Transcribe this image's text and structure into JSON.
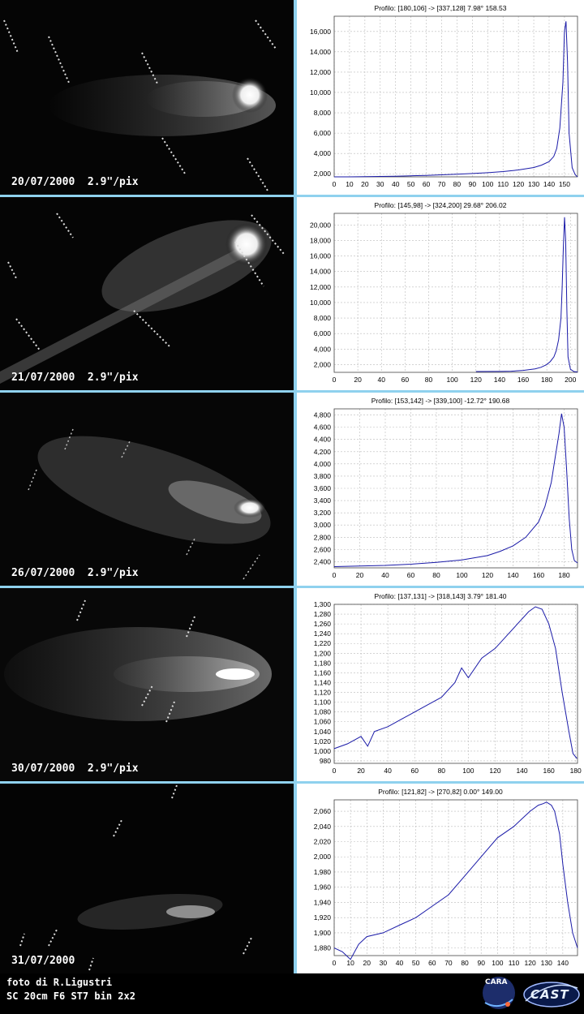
{
  "chart_data": [
    {
      "type": "line",
      "title": "Profilo: [180,106] -> [337,128] 7.98° 158.53",
      "x": [
        0,
        10,
        20,
        30,
        40,
        50,
        60,
        70,
        80,
        90,
        100,
        110,
        120,
        130,
        135,
        140,
        143,
        145,
        147,
        149,
        150,
        151,
        152,
        153,
        155,
        157,
        158.5
      ],
      "y": [
        1700,
        1700,
        1720,
        1740,
        1760,
        1800,
        1840,
        1900,
        1960,
        2030,
        2110,
        2220,
        2380,
        2620,
        2850,
        3200,
        3700,
        4500,
        6500,
        11000,
        16000,
        17000,
        13000,
        6000,
        2600,
        1900,
        1700
      ],
      "xlim": [
        0,
        158.5
      ],
      "ylim": [
        1700,
        17500
      ],
      "xticks": [
        0,
        10,
        20,
        30,
        40,
        50,
        60,
        70,
        80,
        90,
        100,
        110,
        120,
        130,
        140,
        150
      ],
      "yticks": [
        2000,
        4000,
        6000,
        8000,
        10000,
        12000,
        14000,
        16000
      ],
      "grid": true
    },
    {
      "type": "line",
      "title": "Profilo: [145,98] -> [324,200] 29.68° 206.02",
      "x": [
        120,
        140,
        150,
        160,
        170,
        175,
        180,
        183,
        186,
        188,
        190,
        192,
        193,
        194,
        195,
        196,
        197,
        198,
        200,
        203,
        206
      ],
      "y": [
        1100,
        1110,
        1150,
        1250,
        1450,
        1650,
        2000,
        2400,
        3000,
        3800,
        5200,
        8000,
        12000,
        17000,
        21000,
        18000,
        9000,
        3000,
        1400,
        1100,
        1050
      ],
      "xlim": [
        0,
        206
      ],
      "ylim": [
        1000,
        21500
      ],
      "xticks": [
        0,
        20,
        40,
        60,
        80,
        100,
        120,
        140,
        160,
        180,
        200
      ],
      "yticks": [
        2000,
        4000,
        6000,
        8000,
        10000,
        12000,
        14000,
        16000,
        18000,
        20000
      ],
      "grid": true
    },
    {
      "type": "line",
      "title": "Profilo: [153,142] -> [339,100] -12.72° 190.68",
      "x": [
        0,
        20,
        40,
        60,
        80,
        100,
        120,
        130,
        140,
        150,
        160,
        165,
        170,
        173,
        176,
        178,
        180,
        182,
        184,
        186,
        188,
        190.5
      ],
      "y": [
        2320,
        2330,
        2340,
        2360,
        2390,
        2430,
        2500,
        2570,
        2660,
        2800,
        3050,
        3300,
        3700,
        4100,
        4500,
        4820,
        4600,
        3900,
        3100,
        2600,
        2420,
        2380
      ],
      "xlim": [
        0,
        190.5
      ],
      "ylim": [
        2300,
        4900
      ],
      "xticks": [
        0,
        20,
        40,
        60,
        80,
        100,
        120,
        140,
        160,
        180
      ],
      "yticks": [
        2400,
        2600,
        2800,
        3000,
        3200,
        3400,
        3600,
        3800,
        4000,
        4200,
        4400,
        4600,
        4800
      ],
      "grid": true
    },
    {
      "type": "line",
      "title": "Profilo: [137,131] -> [318,143] 3.79° 181.40",
      "x": [
        0,
        10,
        20,
        25,
        30,
        40,
        50,
        60,
        70,
        80,
        90,
        95,
        100,
        110,
        120,
        130,
        140,
        145,
        150,
        155,
        160,
        165,
        170,
        175,
        178,
        181
      ],
      "y": [
        1005,
        1015,
        1030,
        1010,
        1040,
        1050,
        1065,
        1080,
        1095,
        1110,
        1140,
        1170,
        1150,
        1190,
        1210,
        1240,
        1270,
        1285,
        1295,
        1290,
        1260,
        1210,
        1120,
        1040,
        995,
        985
      ],
      "xlim": [
        0,
        181.4
      ],
      "ylim": [
        975,
        1300
      ],
      "xticks": [
        0,
        20,
        40,
        60,
        80,
        100,
        120,
        140,
        160,
        180
      ],
      "yticks": [
        980,
        1000,
        1020,
        1040,
        1060,
        1080,
        1100,
        1120,
        1140,
        1160,
        1180,
        1200,
        1220,
        1240,
        1260,
        1280,
        1300
      ],
      "grid": true
    },
    {
      "type": "line",
      "title": "Profilo: [121,82] -> [270,82] 0.00° 149.00",
      "x": [
        0,
        5,
        10,
        15,
        20,
        30,
        40,
        50,
        60,
        70,
        80,
        90,
        100,
        110,
        115,
        120,
        125,
        128,
        130,
        133,
        135,
        138,
        140,
        143,
        146,
        149
      ],
      "y": [
        1880,
        1875,
        1865,
        1885,
        1895,
        1900,
        1910,
        1920,
        1935,
        1950,
        1975,
        2000,
        2025,
        2040,
        2050,
        2060,
        2068,
        2070,
        2072,
        2068,
        2060,
        2030,
        1990,
        1940,
        1900,
        1880
      ],
      "xlim": [
        0,
        149
      ],
      "ylim": [
        1870,
        2075
      ],
      "xticks": [
        0,
        10,
        20,
        30,
        40,
        50,
        60,
        70,
        80,
        90,
        100,
        110,
        120,
        130,
        140
      ],
      "yticks": [
        1880,
        1900,
        1920,
        1940,
        1960,
        1980,
        2000,
        2020,
        2040,
        2060
      ],
      "grid": true
    }
  ],
  "captions": [
    "20/07/2000  2.9\"/pix",
    "21/07/2000  2.9\"/pix",
    "26/07/2000  2.9\"/pix",
    "30/07/2000  2.9\"/pix",
    "31/07/2000"
  ],
  "footer": {
    "line1": "foto di R.Ligustri",
    "line2": "SC 20cm F6 ST7 bin 2x2",
    "logo1": "CARA",
    "logo2": "CAST"
  },
  "colors": {
    "line": "#1a1aa8",
    "separator": "#8fd1ee",
    "background": "#000000"
  }
}
